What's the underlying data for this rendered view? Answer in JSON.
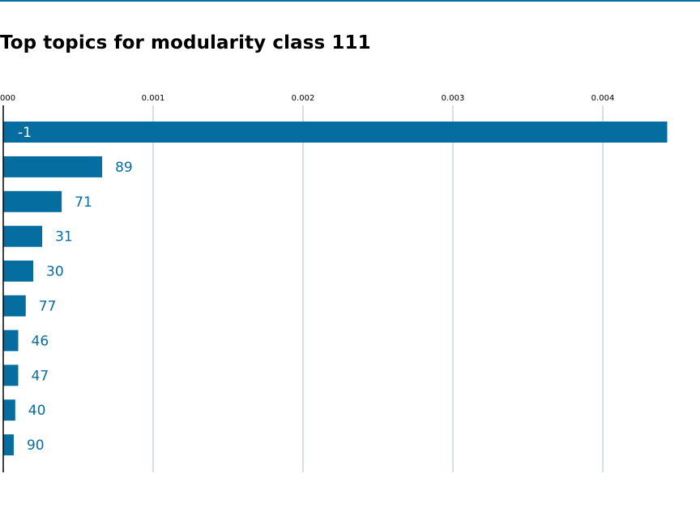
{
  "chart_data": {
    "type": "bar",
    "orientation": "horizontal",
    "title": "Top topics for modularity class 111",
    "xlabel": "",
    "ylabel": "",
    "xlim": [
      0,
      0.0045
    ],
    "xticks": [
      0.0,
      0.001,
      0.002,
      0.003,
      0.004
    ],
    "xtick_labels": [
      "000",
      "0.001",
      "0.002",
      "0.003",
      "0.004"
    ],
    "grid": "vertical",
    "categories": [
      "-1",
      "89",
      "71",
      "31",
      "30",
      "77",
      "46",
      "47",
      "40",
      "90"
    ],
    "values": [
      0.00443,
      0.00066,
      0.00039,
      0.00026,
      0.0002,
      0.00015,
      0.0001,
      0.0001,
      8e-05,
      7e-05
    ],
    "bar_color": "#066da1",
    "label_color_outside": "#066da1",
    "label_color_inside": "#ffffff"
  }
}
